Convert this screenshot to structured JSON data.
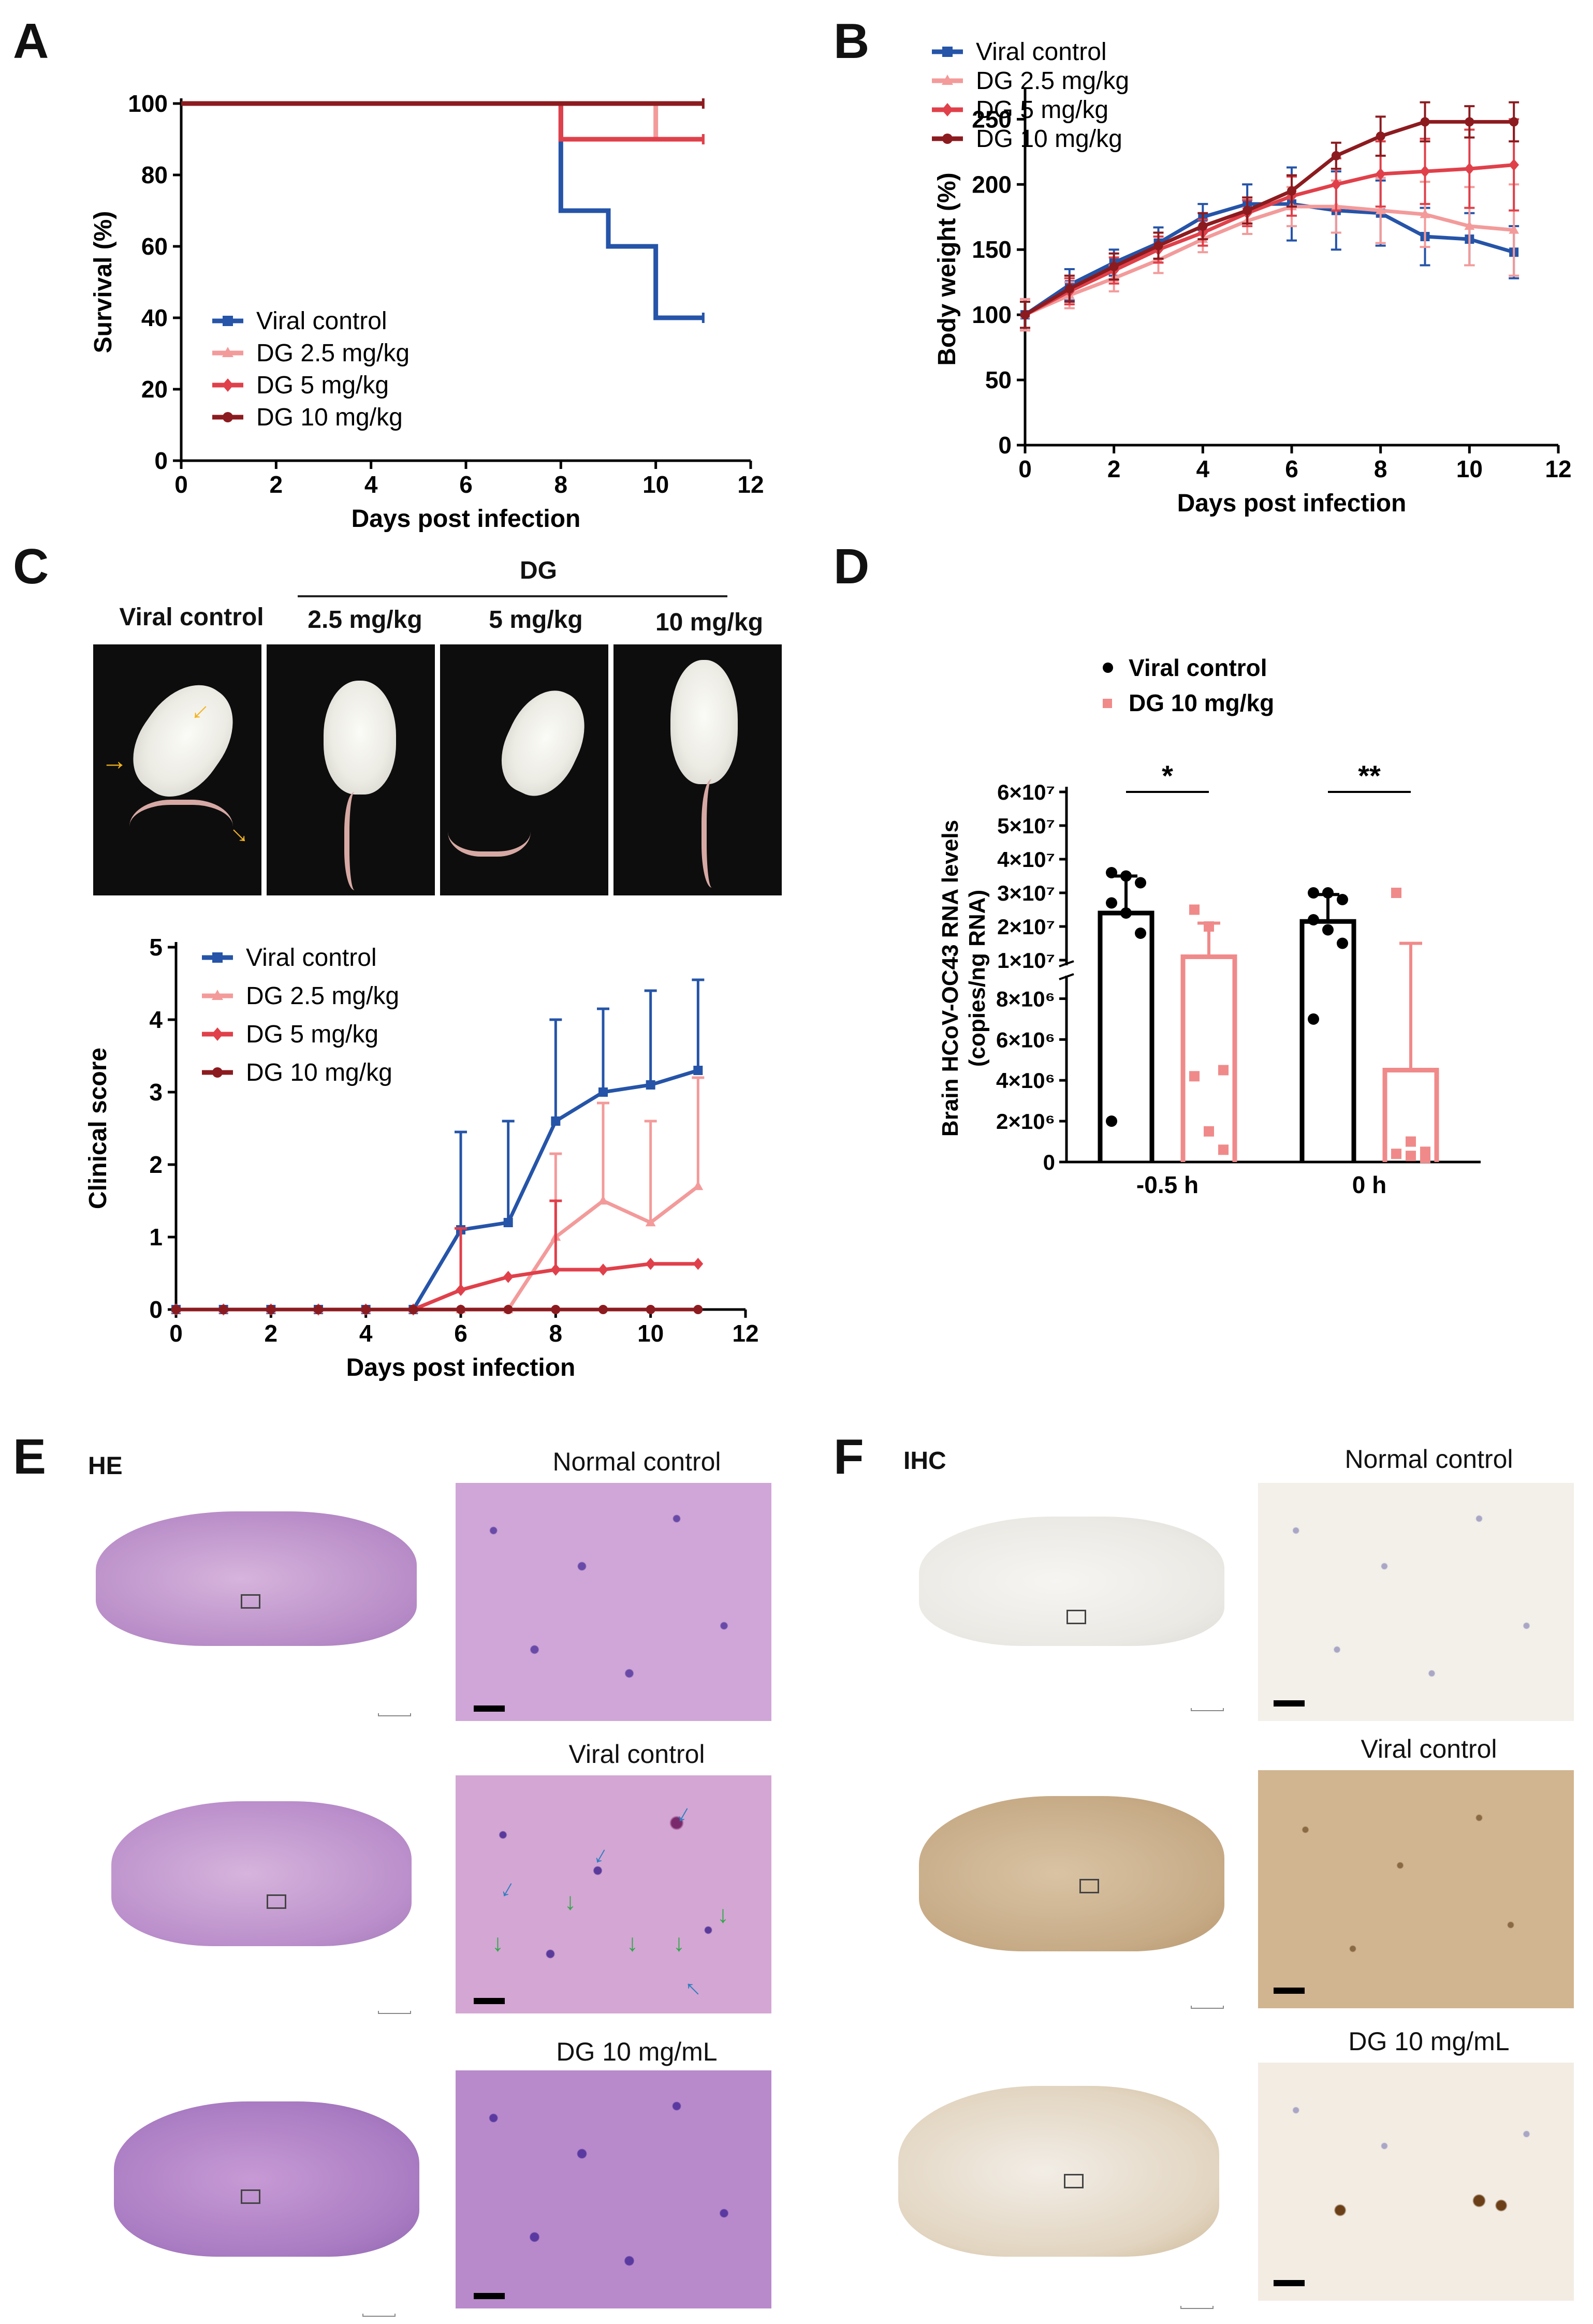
{
  "panels": {
    "A": "A",
    "B": "B",
    "C": "C",
    "D": "D",
    "E": "E",
    "F": "F"
  },
  "colors": {
    "viral": "#2554a8",
    "dg25": "#f39a9a",
    "dg5": "#e0404a",
    "dg10": "#8c1b1f",
    "arrow_yellow": "#f3b320",
    "arrow_blue": "#2f7fc0",
    "arrow_green": "#2fa84a"
  },
  "chart_data": [
    {
      "id": "A",
      "type": "line",
      "subtype": "step",
      "xlabel": "Days post infection",
      "ylabel": "Survival (%)",
      "xlim": [
        0,
        12
      ],
      "ylim": [
        0,
        100
      ],
      "xticks": [
        "0",
        "2",
        "4",
        "6",
        "8",
        "10",
        "12"
      ],
      "yticks": [
        "0",
        "20",
        "40",
        "60",
        "80",
        "100"
      ],
      "legend_position": "bottom-left",
      "series": [
        {
          "name": "Viral control",
          "color": "#2554a8",
          "x": [
            0,
            8,
            8,
            9,
            9,
            10,
            10,
            11
          ],
          "y": [
            100,
            100,
            70,
            70,
            60,
            60,
            40,
            40
          ]
        },
        {
          "name": "DG 2.5 mg/kg",
          "color": "#f39a9a",
          "x": [
            0,
            10,
            10,
            11
          ],
          "y": [
            100,
            100,
            90,
            90
          ]
        },
        {
          "name": "DG 5 mg/kg",
          "color": "#e0404a",
          "x": [
            0,
            8,
            8,
            11
          ],
          "y": [
            100,
            100,
            90,
            90
          ]
        },
        {
          "name": "DG 10 mg/kg",
          "color": "#8c1b1f",
          "x": [
            0,
            11
          ],
          "y": [
            100,
            100
          ]
        }
      ]
    },
    {
      "id": "B",
      "type": "line",
      "xlabel": "Days post infection",
      "ylabel": "Body weight (%)",
      "xlim": [
        0,
        12
      ],
      "ylim": [
        0,
        270
      ],
      "xticks": [
        "0",
        "2",
        "4",
        "6",
        "8",
        "10",
        "12"
      ],
      "yticks": [
        "0",
        "50",
        "100",
        "150",
        "200",
        "250"
      ],
      "legend_position": "top-left",
      "x": [
        0,
        1,
        2,
        3,
        4,
        5,
        6,
        7,
        8,
        9,
        10,
        11
      ],
      "series": [
        {
          "name": "Viral control",
          "color": "#2554a8",
          "values": [
            100,
            123,
            140,
            155,
            175,
            185,
            185,
            180,
            178,
            160,
            158,
            148
          ],
          "err": [
            12,
            12,
            10,
            12,
            10,
            15,
            28,
            30,
            25,
            22,
            20,
            20
          ]
        },
        {
          "name": "DG 2.5 mg/kg",
          "color": "#f39a9a",
          "values": [
            100,
            115,
            128,
            142,
            158,
            172,
            183,
            183,
            180,
            177,
            168,
            165
          ],
          "err": [
            12,
            10,
            10,
            10,
            10,
            10,
            15,
            20,
            25,
            25,
            30,
            35
          ]
        },
        {
          "name": "DG 5 mg/kg",
          "color": "#e0404a",
          "values": [
            100,
            118,
            134,
            150,
            163,
            178,
            191,
            200,
            208,
            210,
            212,
            215
          ],
          "err": [
            10,
            10,
            10,
            10,
            10,
            10,
            15,
            20,
            25,
            25,
            30,
            35
          ]
        },
        {
          "name": "DG 10 mg/kg",
          "color": "#8c1b1f",
          "values": [
            100,
            120,
            137,
            153,
            168,
            180,
            195,
            222,
            237,
            248,
            248,
            248
          ],
          "err": [
            10,
            10,
            10,
            10,
            10,
            10,
            12,
            10,
            15,
            15,
            12,
            15
          ]
        }
      ]
    },
    {
      "id": "C",
      "type": "line",
      "xlabel": "Days post infection",
      "ylabel": "Clinical score",
      "xlim": [
        0,
        12
      ],
      "ylim": [
        0,
        5
      ],
      "xticks": [
        "0",
        "2",
        "4",
        "6",
        "8",
        "10",
        "12"
      ],
      "yticks": [
        "0",
        "1",
        "2",
        "3",
        "4",
        "5"
      ],
      "legend_position": "top-left",
      "x": [
        0,
        1,
        2,
        3,
        4,
        5,
        6,
        7,
        8,
        9,
        10,
        11
      ],
      "series": [
        {
          "name": "Viral control",
          "color": "#2554a8",
          "values": [
            0,
            0,
            0,
            0,
            0,
            0,
            1.1,
            1.2,
            2.6,
            3.0,
            3.1,
            3.3
          ],
          "err": [
            0,
            0,
            0,
            0,
            0,
            0,
            1.35,
            1.4,
            1.4,
            1.15,
            1.3,
            1.25
          ]
        },
        {
          "name": "DG 2.5 mg/kg",
          "color": "#f39a9a",
          "values": [
            0,
            0,
            0,
            0,
            0,
            0,
            0,
            0,
            1.0,
            1.5,
            1.2,
            1.7
          ],
          "err": [
            0,
            0,
            0,
            0,
            0,
            0,
            0,
            0,
            1.15,
            1.35,
            1.4,
            1.5
          ]
        },
        {
          "name": "DG 5 mg/kg",
          "color": "#e0404a",
          "values": [
            0,
            0,
            0,
            0,
            0,
            0,
            0.27,
            0.45,
            0.55,
            0.55,
            0.63,
            0.63
          ],
          "err": [
            0,
            0,
            0,
            0,
            0,
            0,
            0.85,
            0.0,
            0.95,
            0.0,
            0.0,
            0.0
          ]
        },
        {
          "name": "DG 10 mg/kg",
          "color": "#8c1b1f",
          "values": [
            0,
            0,
            0,
            0,
            0,
            0,
            0,
            0,
            0,
            0,
            0,
            0
          ],
          "err": [
            0,
            0,
            0,
            0,
            0,
            0,
            0,
            0,
            0,
            0,
            0,
            0
          ]
        }
      ]
    },
    {
      "id": "D",
      "type": "bar",
      "ylabel_line1": "Brain HCoV-OC43 RNA levels",
      "ylabel_line2": "(copies/ng RNA)",
      "categories": [
        "-0.5 h",
        "0 h"
      ],
      "yscale": "broken",
      "lower_range": [
        0,
        9000000
      ],
      "upper_range": [
        10000000,
        60000000
      ],
      "yticks_lower": [
        "0",
        "2×10⁶",
        "4×10⁶",
        "6×10⁶",
        "8×10⁶"
      ],
      "yticks_upper": [
        "1×10⁷",
        "2×10⁷",
        "3×10⁷",
        "4×10⁷",
        "5×10⁷",
        "6×10⁷"
      ],
      "significance": [
        "*",
        "**"
      ],
      "legend_position": "top",
      "series": [
        {
          "name": "Viral control",
          "color": "#000000",
          "values": [
            24000000,
            21500000
          ],
          "err": [
            11000000,
            8000000
          ],
          "points": [
            [
              36000000,
              35000000,
              33000000,
              27000000,
              24000000,
              18000000,
              2000000
            ],
            [
              30000000,
              30000000,
              28000000,
              22000000,
              19000000,
              15000000,
              7000000
            ]
          ]
        },
        {
          "name": "DG 10 mg/kg",
          "color": "#f08a8a",
          "values": [
            11000000,
            4500000
          ],
          "err": [
            10000000,
            10500000
          ],
          "points": [
            [
              25000000,
              20000000,
              4500000,
              4200000,
              1500000,
              600000
            ],
            [
              30000000,
              1000000,
              500000,
              400000,
              300000,
              200000
            ]
          ]
        }
      ]
    }
  ],
  "C_header": {
    "group": "DG",
    "col1": "Viral control",
    "col2": "2.5 mg/kg",
    "col3": "5 mg/kg",
    "col4": "10 mg/kg"
  },
  "E": {
    "label": "HE",
    "titles": [
      "Normal control",
      "Viral control",
      "DG 10 mg/mL"
    ]
  },
  "F": {
    "label": "IHC",
    "titles": [
      "Normal control",
      "Viral control",
      "DG 10 mg/mL"
    ]
  }
}
